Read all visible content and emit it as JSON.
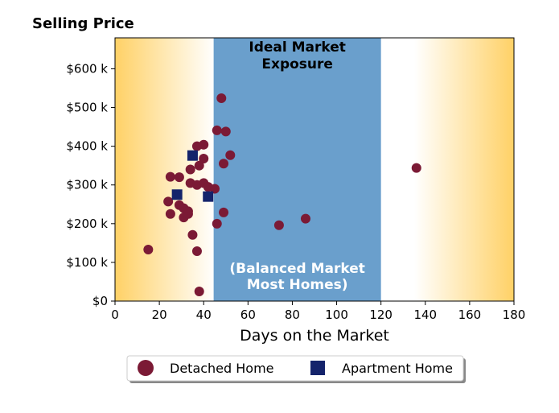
{
  "chart_data": {
    "type": "scatter",
    "title": "Selling Price",
    "xlabel": "Days on the Market",
    "ylabel": "",
    "xlim": [
      0,
      180
    ],
    "ylim": [
      0,
      680000
    ],
    "x_ticks": [
      0,
      20,
      40,
      60,
      80,
      100,
      120,
      140,
      160,
      180
    ],
    "x_tick_labels": [
      "0",
      "20",
      "40",
      "60",
      "80",
      "100",
      "120",
      "140",
      "160",
      "180"
    ],
    "y_ticks": [
      0,
      100000,
      200000,
      300000,
      400000,
      500000,
      600000
    ],
    "y_tick_labels": [
      "$0",
      "$100 k",
      "$200 k",
      "$300 k",
      "$400 k",
      "$500 k",
      "$600 k"
    ],
    "zones": [
      {
        "x_from": 44.5,
        "x_to": 120,
        "color": "#6a9fcc",
        "label_top_1": "Ideal Market",
        "label_top_2": "Exposure",
        "label_bottom_1": "(Balanced Market",
        "label_bottom_2": "Most Homes)"
      }
    ],
    "background_gradient": {
      "edge_color": "#ffd166",
      "center_color": "#ffffff"
    },
    "legend_placement": "bottom-center",
    "series": [
      {
        "name": "Detached Home",
        "marker": "circle",
        "color": "#7b1a35",
        "points": [
          [
            15,
            133000
          ],
          [
            24,
            257000
          ],
          [
            25,
            225000
          ],
          [
            25,
            321000
          ],
          [
            29,
            320000
          ],
          [
            29,
            248000
          ],
          [
            31,
            240000
          ],
          [
            31,
            216000
          ],
          [
            33,
            232000
          ],
          [
            33,
            225000
          ],
          [
            34,
            340000
          ],
          [
            34,
            305000
          ],
          [
            35,
            171000
          ],
          [
            37,
            400000
          ],
          [
            37,
            300000
          ],
          [
            37,
            129000
          ],
          [
            38,
            350000
          ],
          [
            38,
            25000
          ],
          [
            40,
            404000
          ],
          [
            40,
            368000
          ],
          [
            40,
            305000
          ],
          [
            42,
            295000
          ],
          [
            45,
            290000
          ],
          [
            46,
            441000
          ],
          [
            46,
            200000
          ],
          [
            48,
            524000
          ],
          [
            49,
            355000
          ],
          [
            49,
            229000
          ],
          [
            50,
            438000
          ],
          [
            52,
            377000
          ],
          [
            74,
            196000
          ],
          [
            86,
            213000
          ],
          [
            136,
            344000
          ]
        ]
      },
      {
        "name": "Apartment Home",
        "marker": "square",
        "color": "#14236b",
        "points": [
          [
            28,
            275000
          ],
          [
            35,
            376000
          ],
          [
            42,
            270000
          ]
        ]
      }
    ]
  }
}
